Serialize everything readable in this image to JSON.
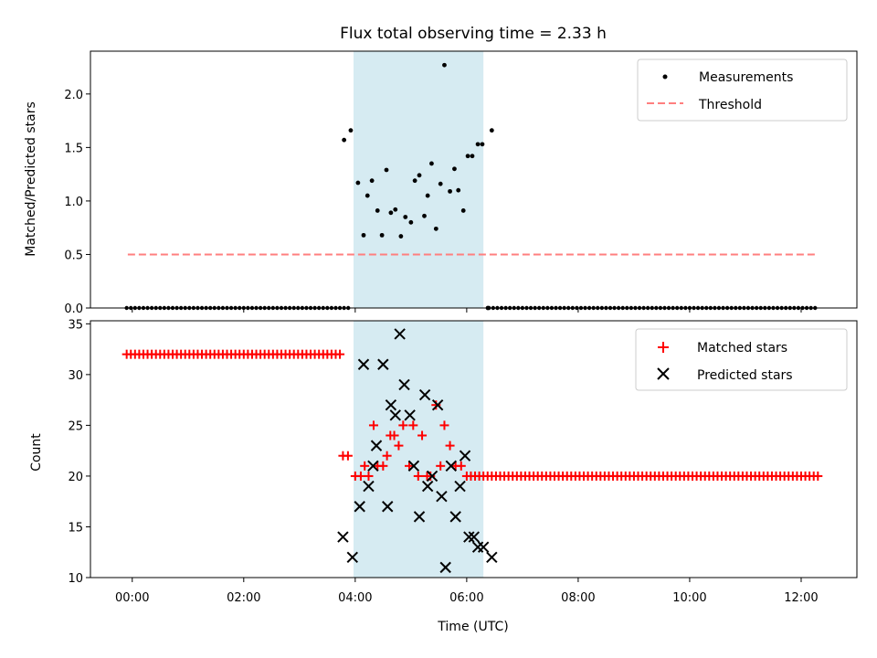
{
  "chart_data": {
    "type": "scatter",
    "title": "Flux total observing time = 2.33 h",
    "xlabel": "Time (UTC)",
    "x_unit": "hours",
    "xlim": [
      -0.75,
      13.0
    ],
    "x_ticks": [
      0,
      2,
      4,
      6,
      8,
      10,
      12
    ],
    "x_tick_labels": [
      "00:00",
      "02:00",
      "04:00",
      "06:00",
      "08:00",
      "10:00",
      "12:00"
    ],
    "shaded_span": {
      "start": 3.97,
      "end": 6.3,
      "color": "#add8e6"
    },
    "colors": {
      "measurement": "#000000",
      "threshold": "#ff7f7f",
      "matched": "#ff0000",
      "predicted": "#000000",
      "span": "#add8e6"
    },
    "panels": [
      {
        "id": "ratio",
        "ylabel": "Matched/Predicted stars",
        "ylim": [
          0,
          2.4
        ],
        "y_ticks": [
          0.0,
          0.5,
          1.0,
          1.5,
          2.0
        ],
        "y_tick_labels": [
          "0.0",
          "0.5",
          "1.0",
          "1.5",
          "2.0"
        ],
        "legend": [
          {
            "label": "Measurements",
            "marker": "dot"
          },
          {
            "label": "Threshold",
            "marker": "dashed-line"
          }
        ],
        "threshold": {
          "value": 0.5,
          "x_start": -0.08,
          "x_end": 12.25
        },
        "zero_runs": [
          {
            "start": -0.1,
            "end": 3.9,
            "step": 0.075
          },
          {
            "start": 6.4,
            "end": 12.3,
            "step": 0.075
          }
        ],
        "measurements": [
          [
            3.8,
            1.57
          ],
          [
            3.92,
            1.66
          ],
          [
            4.05,
            1.17
          ],
          [
            4.15,
            0.68
          ],
          [
            4.22,
            1.05
          ],
          [
            4.3,
            1.19
          ],
          [
            4.4,
            0.91
          ],
          [
            4.48,
            0.68
          ],
          [
            4.56,
            1.29
          ],
          [
            4.64,
            0.89
          ],
          [
            4.72,
            0.92
          ],
          [
            4.82,
            0.67
          ],
          [
            4.9,
            0.85
          ],
          [
            5.0,
            0.8
          ],
          [
            5.07,
            1.19
          ],
          [
            5.15,
            1.24
          ],
          [
            5.24,
            0.86
          ],
          [
            5.3,
            1.05
          ],
          [
            5.37,
            1.35
          ],
          [
            5.45,
            0.74
          ],
          [
            5.53,
            1.16
          ],
          [
            5.6,
            2.27
          ],
          [
            5.7,
            1.09
          ],
          [
            5.78,
            1.3
          ],
          [
            5.85,
            1.1
          ],
          [
            5.94,
            0.91
          ],
          [
            6.02,
            1.42
          ],
          [
            6.1,
            1.42
          ],
          [
            6.2,
            1.53
          ],
          [
            6.28,
            1.53
          ],
          [
            6.38,
            0.0
          ],
          [
            6.45,
            1.66
          ]
        ]
      },
      {
        "id": "counts",
        "ylabel": "Count",
        "ylim": [
          10,
          35.3
        ],
        "y_ticks": [
          10,
          15,
          20,
          25,
          30,
          35
        ],
        "y_tick_labels": [
          "10",
          "15",
          "20",
          "25",
          "30",
          "35"
        ],
        "legend": [
          {
            "label": "Matched stars",
            "marker": "plus"
          },
          {
            "label": "Predicted stars",
            "marker": "x"
          }
        ],
        "matched_runs": [
          {
            "start": -0.1,
            "end": 3.75,
            "step": 0.075,
            "value": 32
          },
          {
            "start": 6.0,
            "end": 12.3,
            "step": 0.075,
            "value": 20
          }
        ],
        "matched": [
          [
            3.78,
            22
          ],
          [
            3.87,
            22
          ],
          [
            4.0,
            20
          ],
          [
            4.1,
            20
          ],
          [
            4.17,
            21
          ],
          [
            4.24,
            20
          ],
          [
            4.33,
            25
          ],
          [
            4.4,
            21
          ],
          [
            4.5,
            21
          ],
          [
            4.57,
            22
          ],
          [
            4.63,
            24
          ],
          [
            4.7,
            24
          ],
          [
            4.78,
            23
          ],
          [
            4.86,
            25
          ],
          [
            4.97,
            21
          ],
          [
            5.04,
            25
          ],
          [
            5.13,
            20
          ],
          [
            5.2,
            24
          ],
          [
            5.29,
            20
          ],
          [
            5.35,
            20
          ],
          [
            5.45,
            27
          ],
          [
            5.53,
            21
          ],
          [
            5.6,
            25
          ],
          [
            5.7,
            23
          ],
          [
            5.8,
            21
          ],
          [
            5.9,
            21
          ]
        ],
        "predicted": [
          [
            3.78,
            14
          ],
          [
            3.95,
            12
          ],
          [
            4.08,
            17
          ],
          [
            4.15,
            31
          ],
          [
            4.24,
            19
          ],
          [
            4.32,
            21
          ],
          [
            4.38,
            23
          ],
          [
            4.5,
            31
          ],
          [
            4.58,
            17
          ],
          [
            4.64,
            27
          ],
          [
            4.72,
            26
          ],
          [
            4.8,
            34
          ],
          [
            4.88,
            29
          ],
          [
            4.98,
            26
          ],
          [
            5.05,
            21
          ],
          [
            5.15,
            16
          ],
          [
            5.25,
            28
          ],
          [
            5.3,
            19
          ],
          [
            5.38,
            20
          ],
          [
            5.48,
            27
          ],
          [
            5.55,
            18
          ],
          [
            5.62,
            11
          ],
          [
            5.72,
            21
          ],
          [
            5.8,
            16
          ],
          [
            5.88,
            19
          ],
          [
            5.97,
            22
          ],
          [
            6.04,
            14
          ],
          [
            6.13,
            14
          ],
          [
            6.2,
            13
          ],
          [
            6.3,
            13
          ],
          [
            6.45,
            12
          ]
        ]
      }
    ]
  }
}
